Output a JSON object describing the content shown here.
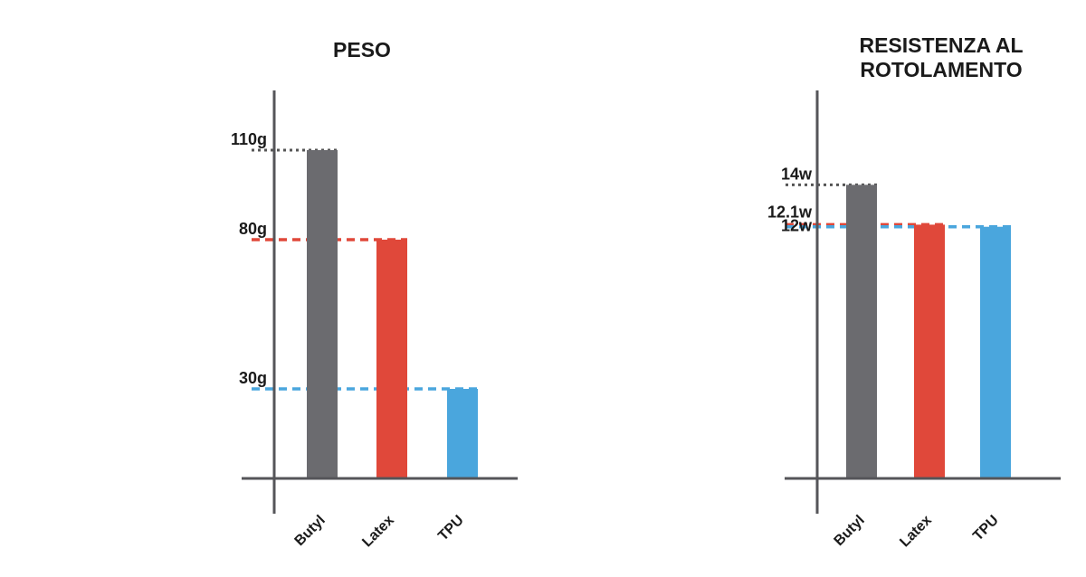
{
  "colors": {
    "butyl": "#6b6b6f",
    "latex": "#e0483a",
    "tpu": "#4aa6dd",
    "axis": "#555559",
    "text": "#1a1a1a"
  },
  "chart_data": [
    {
      "type": "bar",
      "title": "PESO",
      "categories": [
        "Butyl",
        "Latex",
        "TPU"
      ],
      "values": [
        110,
        80,
        30
      ],
      "value_labels": [
        "110g",
        "80g",
        "30g"
      ],
      "unit": "g",
      "ylim": [
        0,
        130
      ],
      "grid": false,
      "legend": "none"
    },
    {
      "type": "bar",
      "title": "RESISTENZA AL ROTOLAMENTO",
      "title_lines": [
        "RESISTENZA AL",
        "ROTOLAMENTO"
      ],
      "categories": [
        "Butyl",
        "Latex",
        "TPU"
      ],
      "values": [
        14,
        12.1,
        12
      ],
      "value_labels": [
        "14w",
        "12.1w",
        "12w"
      ],
      "unit": "w",
      "ylim": [
        0,
        18.5
      ],
      "grid": false,
      "legend": "none"
    }
  ]
}
